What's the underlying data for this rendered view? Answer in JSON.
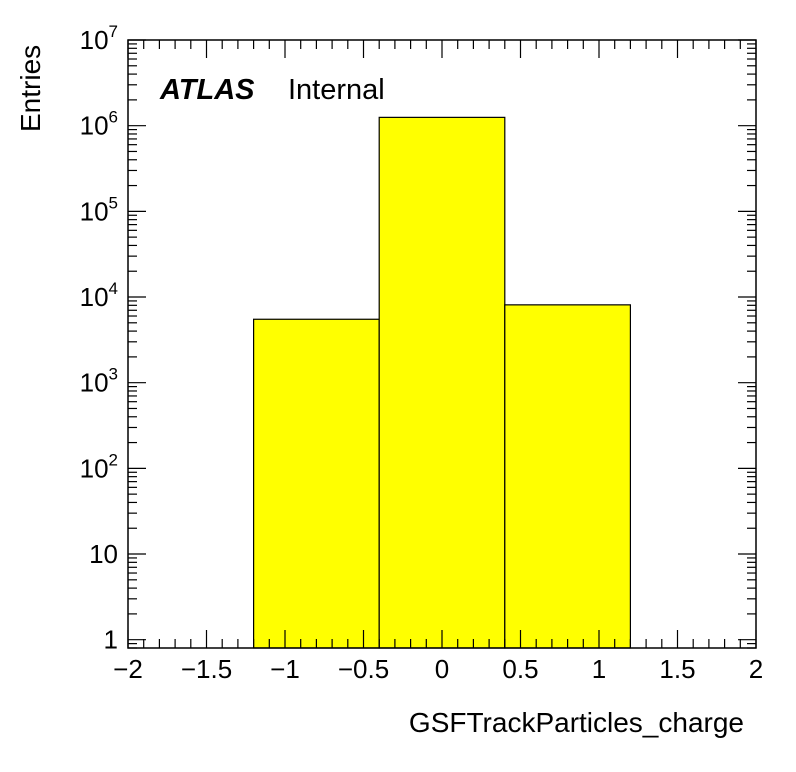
{
  "chart_data": {
    "type": "bar",
    "histogram": true,
    "bin_edges": [
      -1.2,
      -0.4,
      0.4,
      1.2
    ],
    "values": [
      5500,
      1250000,
      8100
    ],
    "fill_color": "#ffff00",
    "xlabel": "GSFTrackParticles_charge",
    "ylabel": "Entries",
    "xlim": [
      -2,
      2
    ],
    "ylim": [
      0.8,
      10000000
    ],
    "yscale": "log",
    "x_ticks": [
      -2,
      -1.5,
      -1,
      -0.5,
      0,
      0.5,
      1,
      1.5,
      2
    ],
    "x_tick_labels": [
      "−2",
      "−1.5",
      "−1",
      "−0.5",
      "0",
      "0.5",
      "1",
      "1.5",
      "2"
    ],
    "y_ticks": [
      {
        "value": 1,
        "base": "1",
        "exp": ""
      },
      {
        "value": 10,
        "base": "10",
        "exp": ""
      },
      {
        "value": 100,
        "base": "10",
        "exp": "2"
      },
      {
        "value": 1000,
        "base": "10",
        "exp": "3"
      },
      {
        "value": 10000,
        "base": "10",
        "exp": "4"
      },
      {
        "value": 100000,
        "base": "10",
        "exp": "5"
      },
      {
        "value": 1000000,
        "base": "10",
        "exp": "6"
      },
      {
        "value": 10000000,
        "base": "10",
        "exp": "7"
      }
    ],
    "annotation": {
      "bold": "ATLAS",
      "text": "Internal"
    },
    "grid": false
  }
}
